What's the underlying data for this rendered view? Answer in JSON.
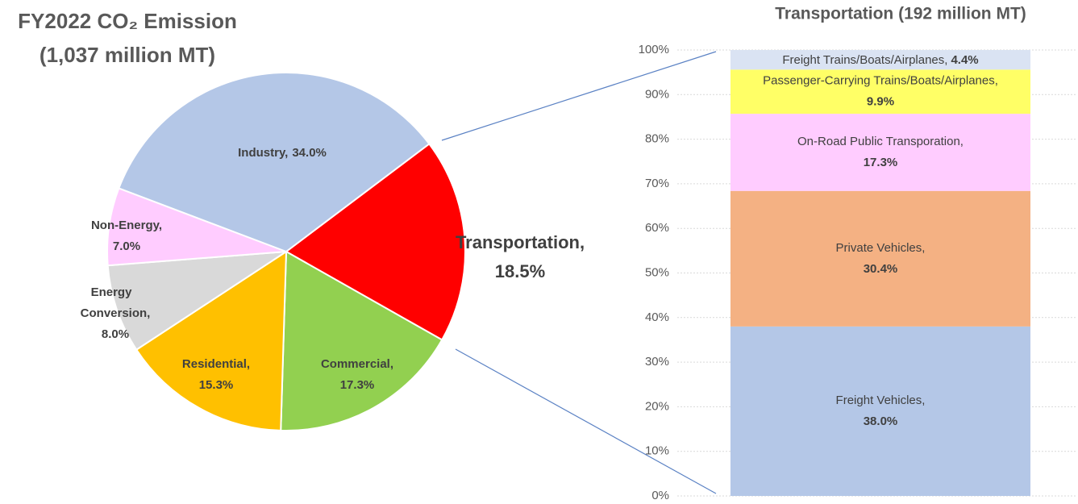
{
  "chart_data": [
    {
      "type": "pie",
      "title": "FY2022 CO₂ Emission",
      "subtitle": "(1,037 million MT)",
      "categories": [
        "Transportation,",
        "Commercial,",
        "Residential,",
        "Energy Conversion,",
        "Non-Energy,",
        "Industry,"
      ],
      "values": [
        18.5,
        17.3,
        15.3,
        8.0,
        7.0,
        34.0
      ],
      "value_labels": [
        "18.5%",
        "17.3%",
        "15.3%",
        "8.0%",
        "7.0%",
        "34.0%"
      ],
      "colors": [
        "#ff0000",
        "#92d050",
        "#ffc000",
        "#d9d9d9",
        "#ffccff",
        "#b4c7e7"
      ]
    },
    {
      "type": "stacked_bar",
      "title": "Transportation (192 million MT)",
      "series": [
        {
          "name": "Freight Vehicles,",
          "color": "#b4c7e7",
          "values": [
            38.0
          ],
          "value_labels": [
            "38.0%"
          ]
        },
        {
          "name": "Private Vehicles,",
          "color": "#f4b183",
          "values": [
            30.4
          ],
          "value_labels": [
            "30.4%"
          ]
        },
        {
          "name": "On-Road Public Transporation,",
          "color": "#ffccff",
          "values": [
            17.3
          ],
          "value_labels": [
            "17.3%"
          ]
        },
        {
          "name": "Passenger-Carrying Trains/Boats/Airplanes,",
          "color": "#ffff66",
          "values": [
            9.9
          ],
          "value_labels": [
            "9.9%"
          ]
        },
        {
          "name": "Freight Trains/Boats/Airplanes,",
          "color": "#dae3f3",
          "values": [
            4.4
          ],
          "value_labels": [
            "4.4%"
          ]
        }
      ],
      "ylim": [
        0,
        100
      ],
      "yticks": [
        {
          "value": 0,
          "label": "0%"
        },
        {
          "value": 10,
          "label": "10%"
        },
        {
          "value": 20,
          "label": "20%"
        },
        {
          "value": 30,
          "label": "30%"
        },
        {
          "value": 40,
          "label": "40%"
        },
        {
          "value": 50,
          "label": "50%"
        },
        {
          "value": 60,
          "label": "60%"
        },
        {
          "value": 70,
          "label": "70%"
        },
        {
          "value": 80,
          "label": "80%"
        },
        {
          "value": 90,
          "label": "90%"
        },
        {
          "value": 100,
          "label": "100%"
        }
      ],
      "grid": true
    }
  ]
}
